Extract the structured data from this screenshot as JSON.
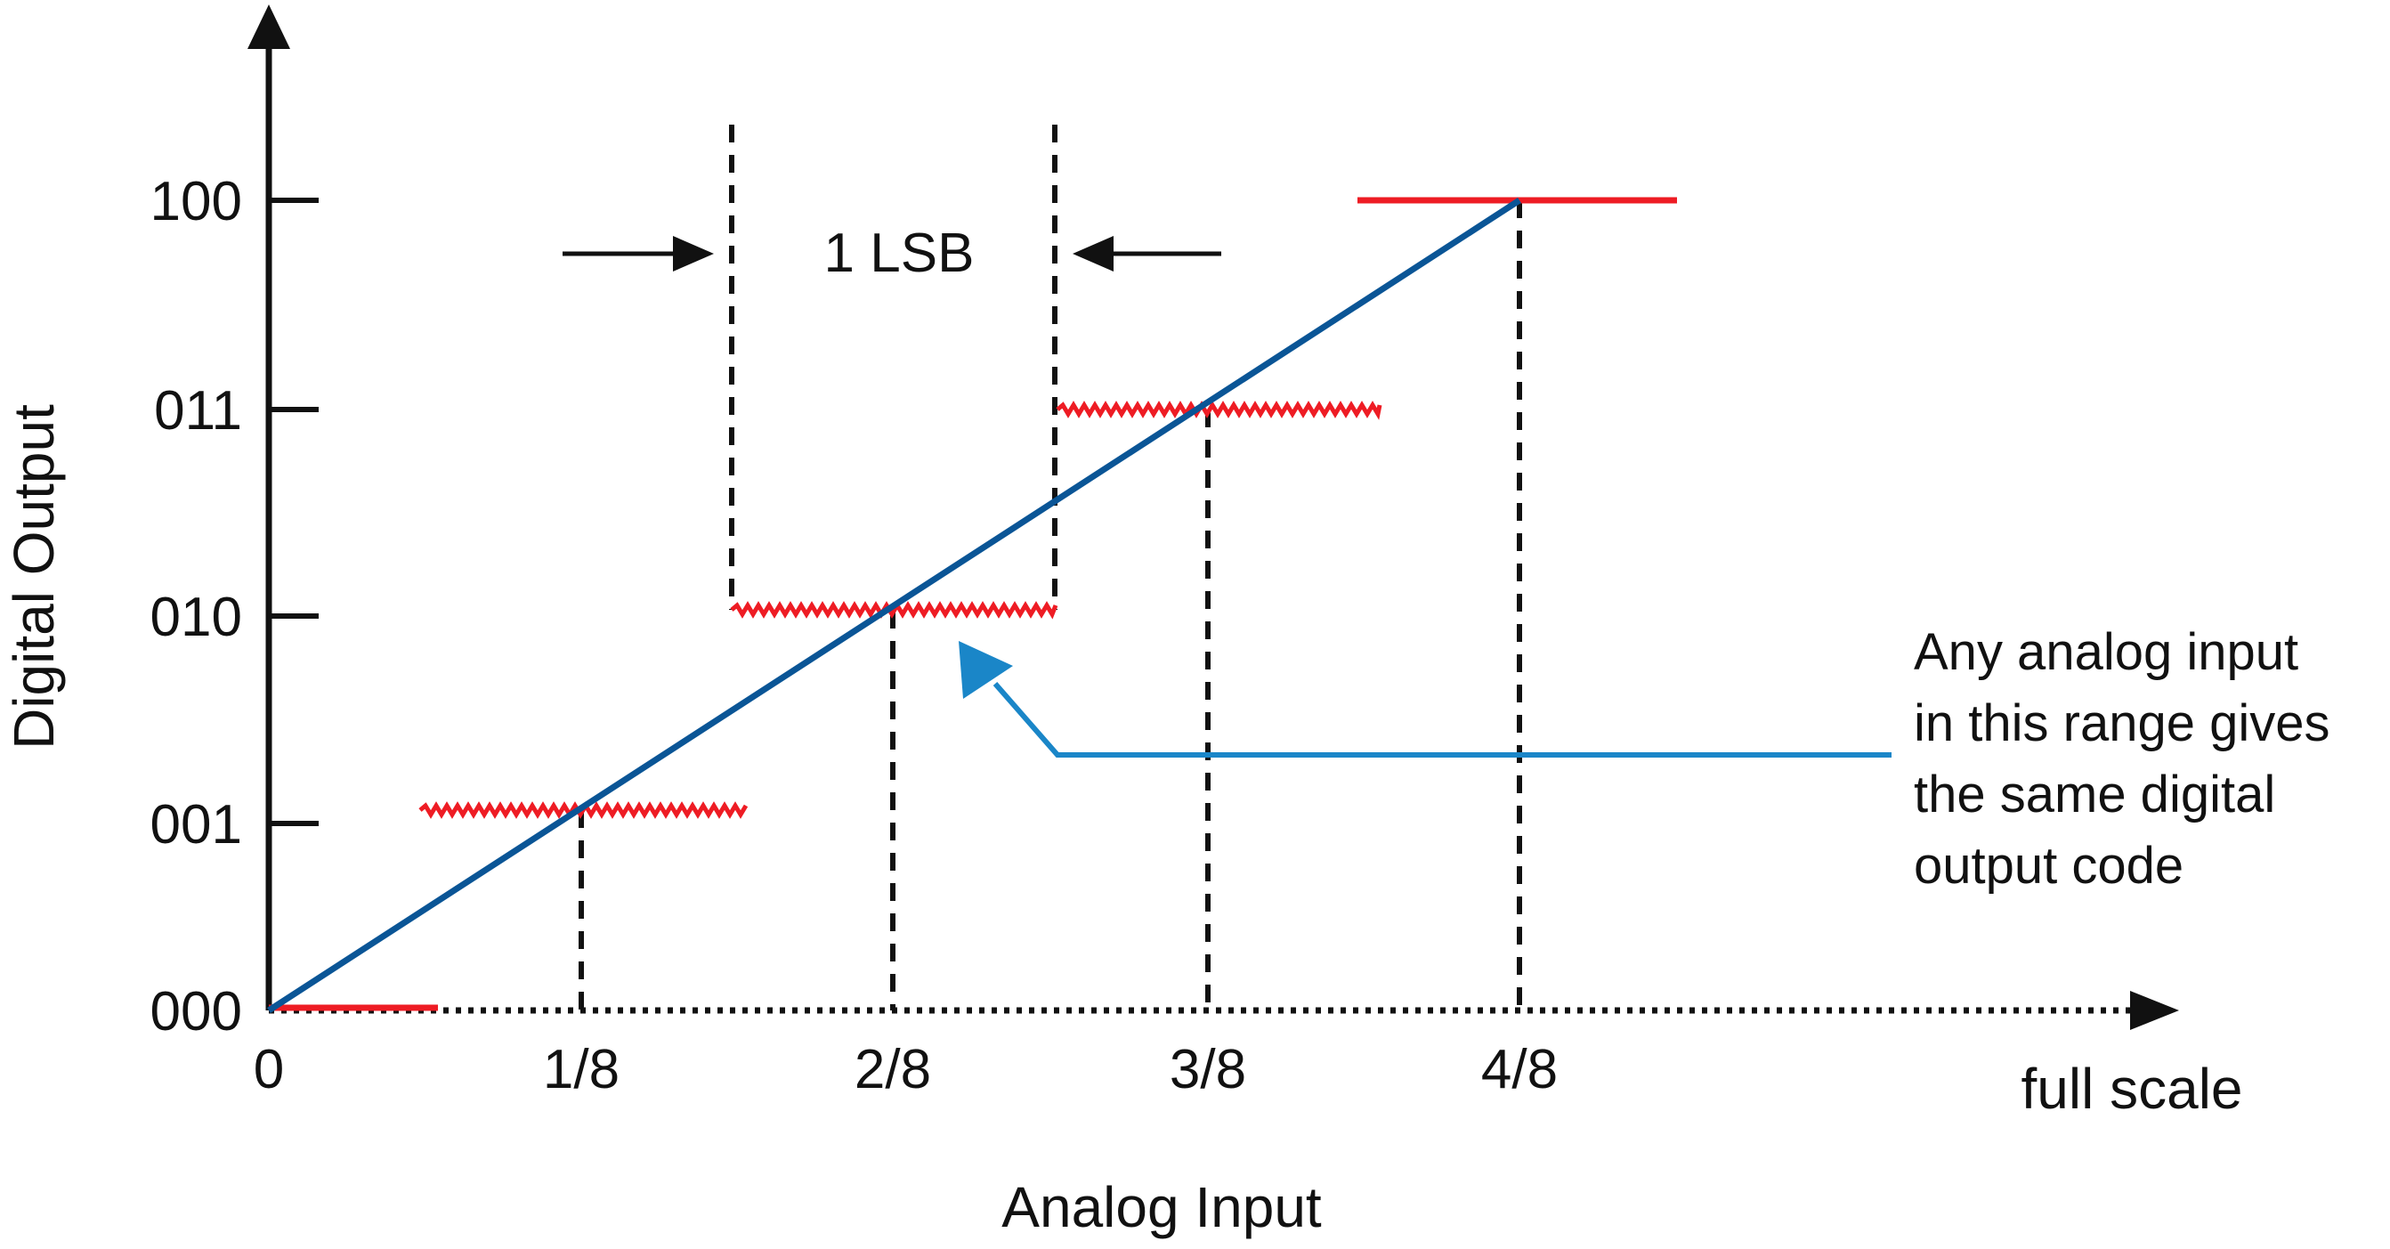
{
  "title": "",
  "axes": {
    "y_title": "Digital Output",
    "x_title": "Analog Input",
    "x_end_label": "full scale",
    "y_ticks": [
      "000",
      "001",
      "010",
      "011",
      "100"
    ],
    "x_ticks": [
      "0",
      "1/8",
      "2/8",
      "3/8",
      "4/8"
    ]
  },
  "lsb": {
    "label": "1 LSB"
  },
  "annotation": {
    "lines": [
      "Any analog input",
      "in this range gives",
      "the same digital",
      "output code"
    ]
  },
  "colors": {
    "axis": "#111111",
    "ideal_line": "#0a5596",
    "quantization": "#ee1c24",
    "callout": "#1a86c8",
    "text": "#111111"
  },
  "chart_data": {
    "type": "line",
    "description_of_series": null,
    "x_ticks": [
      "0",
      "1/8",
      "2/8",
      "3/8",
      "4/8"
    ],
    "y_ticks": [
      "000",
      "001",
      "010",
      "011",
      "100"
    ],
    "series": [
      {
        "x": [
          0,
          0.5
        ],
        "y": [
          0,
          4
        ]
      }
    ],
    "quantization_steps": [
      {
        "code": "000",
        "x_range": [
          0,
          0.0625
        ]
      },
      {
        "code": "001",
        "x_range": [
          0.0625,
          0.1875
        ]
      },
      {
        "code": "010",
        "x_range": [
          0.1875,
          0.3125
        ]
      },
      {
        "code": "011",
        "x_range": [
          0.3125,
          0.4375
        ]
      },
      {
        "code": "100",
        "x_range": [
          0.4375,
          0.5625
        ]
      }
    ],
    "xlabel": "Analog Input",
    "ylabel": "Digital Output"
  }
}
